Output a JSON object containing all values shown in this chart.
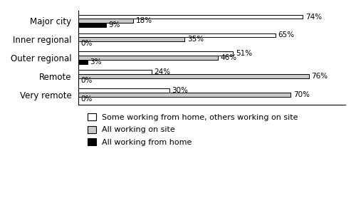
{
  "categories": [
    "Major city",
    "Inner regional",
    "Outer regional",
    "Remote",
    "Very remote"
  ],
  "some_wfh": [
    74,
    65,
    51,
    24,
    30
  ],
  "all_on_site": [
    18,
    35,
    46,
    76,
    70
  ],
  "all_wfh": [
    9,
    0,
    3,
    0,
    0
  ],
  "colors": {
    "some_wfh": "#ffffff",
    "all_on_site": "#c8c8c8",
    "all_wfh": "#000000"
  },
  "bar_edge_color": "#000000",
  "bar_height": 0.22,
  "xlim": [
    0,
    88
  ],
  "legend_labels": [
    "Some working from home, others working on site",
    "All working on site",
    "All working from home"
  ],
  "label_fontsize": 7.5,
  "tick_fontsize": 8.5,
  "legend_fontsize": 8
}
